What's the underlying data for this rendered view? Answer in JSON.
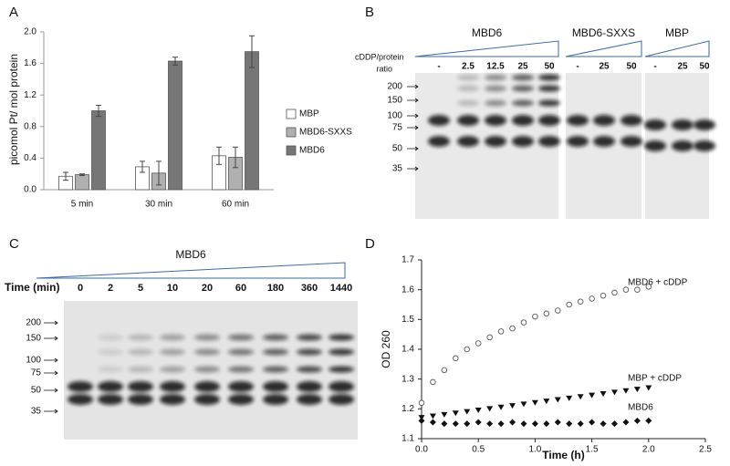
{
  "panel_labels": [
    "A",
    "B",
    "C",
    "D"
  ],
  "chart_data": [
    {
      "type": "bar",
      "ylabel": "picomol Pt/ mol protein",
      "categories": [
        "5 min",
        "30 min",
        "60 min"
      ],
      "series": [
        {
          "name": "MBP",
          "color": "#ffffff",
          "values": [
            0.17,
            0.29,
            0.43
          ],
          "errors": [
            0.05,
            0.07,
            0.11
          ]
        },
        {
          "name": "MBD6-SXXS",
          "color": "#b0b0b0",
          "values": [
            0.19,
            0.21,
            0.41
          ],
          "errors": [
            0.01,
            0.15,
            0.13
          ]
        },
        {
          "name": "MBD6",
          "color": "#767676",
          "values": [
            1.0,
            1.63,
            1.75
          ],
          "errors": [
            0.07,
            0.05,
            0.2
          ]
        }
      ],
      "ylim": [
        0,
        2
      ],
      "yticks": [
        {
          "value": 0,
          "label": "0.0"
        },
        0.4,
        0.8,
        1.2,
        1.6,
        {
          "value": 2,
          "label": "2.0"
        }
      ]
    },
    {
      "type": "scatter",
      "xlabel": "Time (h)",
      "ylabel": "OD 260",
      "x": [
        0,
        0.1,
        0.2,
        0.3,
        0.4,
        0.5,
        0.6,
        0.7,
        0.8,
        0.9,
        1.0,
        1.1,
        1.2,
        1.3,
        1.4,
        1.5,
        1.6,
        1.7,
        1.8,
        1.9,
        2.0
      ],
      "series": [
        {
          "name": "MBD6 + cDDP",
          "color": "#555555",
          "marker": "circle-open",
          "values": [
            1.22,
            1.29,
            1.33,
            1.37,
            1.4,
            1.42,
            1.44,
            1.46,
            1.47,
            1.49,
            1.51,
            1.52,
            1.53,
            1.55,
            1.56,
            1.57,
            1.58,
            1.59,
            1.6,
            1.6,
            1.61
          ]
        },
        {
          "name": "MBP + cDDP",
          "color": "#111111",
          "marker": "triangle-down",
          "values": [
            1.17,
            1.175,
            1.18,
            1.185,
            1.19,
            1.195,
            1.2,
            1.205,
            1.21,
            1.215,
            1.22,
            1.225,
            1.23,
            1.235,
            1.24,
            1.245,
            1.25,
            1.255,
            1.26,
            1.265,
            1.27
          ]
        },
        {
          "name": "MBD6",
          "color": "#111111",
          "marker": "diamond",
          "values": [
            1.16,
            1.155,
            1.15,
            1.15,
            1.15,
            1.155,
            1.15,
            1.15,
            1.155,
            1.15,
            1.15,
            1.15,
            1.155,
            1.15,
            1.15,
            1.155,
            1.15,
            1.15,
            1.155,
            1.16,
            1.16
          ]
        }
      ],
      "xlim": [
        0,
        2.5
      ],
      "xticks": [
        {
          "value": 0,
          "label": "0.0"
        },
        0.5,
        {
          "value": 1,
          "label": "1.0"
        },
        1.5,
        {
          "value": 2,
          "label": "2.0"
        },
        2.5
      ],
      "ylim": [
        1.1,
        1.7
      ],
      "yticks": [
        1.1,
        1.2,
        1.3,
        1.4,
        1.5,
        1.6,
        1.7
      ]
    }
  ],
  "gels": [
    {
      "lane_axis_label": [
        "cDDP/protein",
        "ratio"
      ],
      "groups": [
        {
          "name": "MBD6",
          "lanes": [
            "-",
            "2.5",
            "12.5",
            "25",
            "50"
          ]
        },
        {
          "name": "MBD6-SXXS",
          "lanes": [
            "-",
            "25",
            "50"
          ]
        },
        {
          "name": "MBP",
          "lanes": [
            "-",
            "25",
            "50"
          ]
        }
      ],
      "markers": [
        "200",
        "150",
        "100",
        "75",
        "50",
        "35"
      ]
    },
    {
      "lane_axis_label": [
        "Time (min)"
      ],
      "groups": [
        {
          "name": "MBD6",
          "lanes": [
            "0",
            "2",
            "5",
            "10",
            "20",
            "60",
            "180",
            "360",
            "1440"
          ]
        }
      ],
      "markers": [
        "200",
        "150",
        "100",
        "75",
        "50",
        "35"
      ]
    }
  ]
}
